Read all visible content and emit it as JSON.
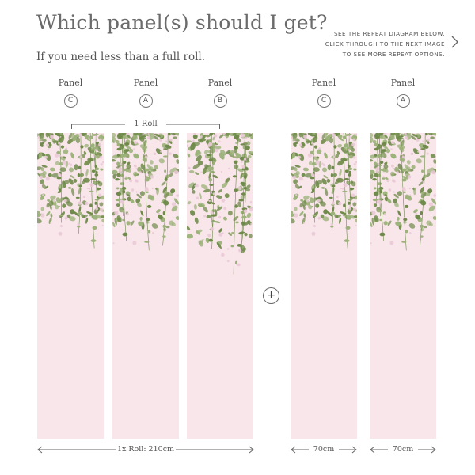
{
  "header": {
    "title": "Which panel(s) should I get?",
    "subtitle": "If you need less than a full roll."
  },
  "note": {
    "lines": [
      "SEE THE REPEAT DIAGRAM BELOW.",
      "CLICK THROUGH TO THE NEXT IMAGE",
      "TO SEE MORE REPEAT OPTIONS."
    ],
    "next_icon": "chevron-right-icon"
  },
  "panels": [
    {
      "label": "Panel",
      "letter": "C"
    },
    {
      "label": "Panel",
      "letter": "A"
    },
    {
      "label": "Panel",
      "letter": "B"
    },
    {
      "label": "Panel",
      "letter": "C"
    },
    {
      "label": "Panel",
      "letter": "A"
    }
  ],
  "roll": {
    "label": "1 Roll"
  },
  "plus": {
    "symbol": "+"
  },
  "dimensions": {
    "roll_width": "1x Roll: 210cm",
    "panel_width_1": "70cm",
    "panel_width_2": "70cm"
  },
  "colors": {
    "panel_bg": "#f8e6ea",
    "leaf_dark": "#6f8a4a",
    "leaf_light": "#9cb27a",
    "blossom": "#e9c9d6"
  }
}
